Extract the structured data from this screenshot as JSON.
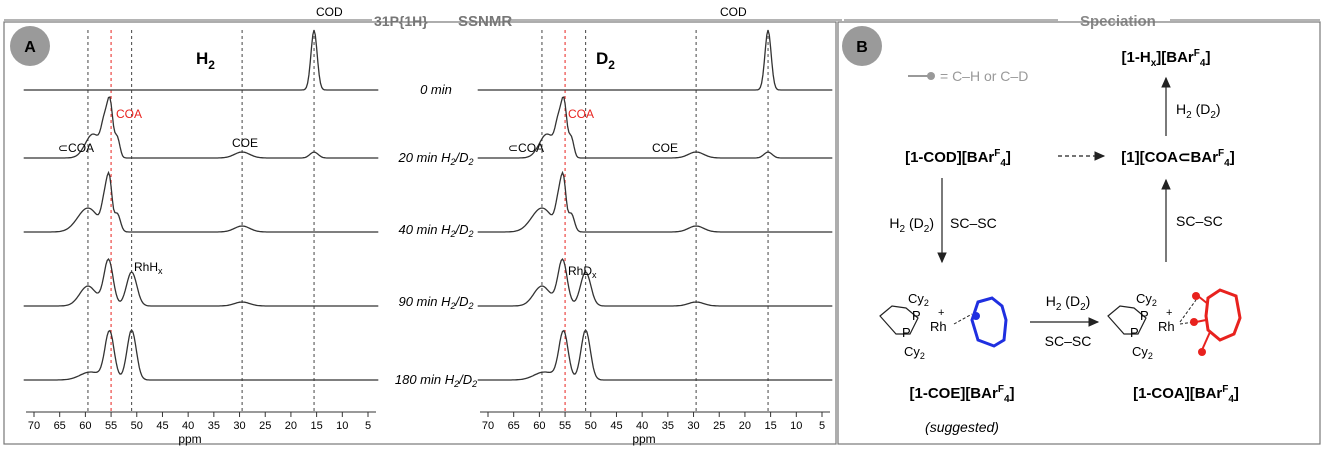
{
  "figure": {
    "header_left": "SSNMR",
    "header_left_nucleus": "31P{1H}",
    "header_right": "Speciation"
  },
  "panel_a": {
    "badge": "A",
    "col_labels": [
      "H2",
      "D2"
    ],
    "traces": [
      {
        "time": "0 min"
      },
      {
        "time": "20 min H2/D2"
      },
      {
        "time": "40 min H2/D2"
      },
      {
        "time": "90 min H2/D2"
      },
      {
        "time": "180 min H2/D2"
      }
    ],
    "peak_labels": {
      "cod": "COD",
      "coa": "COA",
      "coe": "COE",
      "sub_coa": "⊂COA",
      "rh_hx": "RhHx",
      "rh_dx": "RhDx"
    },
    "axis": {
      "ticks": [
        70,
        65,
        60,
        55,
        50,
        45,
        40,
        35,
        30,
        25,
        20,
        15,
        10,
        5
      ],
      "unit": "ppm"
    }
  },
  "panel_b": {
    "badge": "B",
    "legend": "= C–H or C–D",
    "species": {
      "hx": "[1-Hx][BArF4]",
      "cod": "[1-COD][BArF4]",
      "coa_in": "[1][COA⊂BArF4]",
      "coe": "[1-COE][BArF4]",
      "coa": "[1-COA][BArF4]",
      "suggested": "(suggested)"
    },
    "arrows": {
      "h2d2_up": "H2 (D2)",
      "scsc_up": "SC–SC",
      "h2d2_left": "H2 (D2)",
      "scsc_left": "SC–SC",
      "h2d2_bottom": "H2 (D2)",
      "scsc_bottom": "SC–SC"
    },
    "struct_labels": {
      "cy": "Cy2",
      "p": "P",
      "rh": "Rh",
      "plus": "+"
    }
  },
  "colors": {
    "coe_ring": "#1f2fe0",
    "coa_ring": "#e8221e",
    "coa_label": "#e8221e",
    "legend_grey": "#999999",
    "frame": "#777777"
  }
}
